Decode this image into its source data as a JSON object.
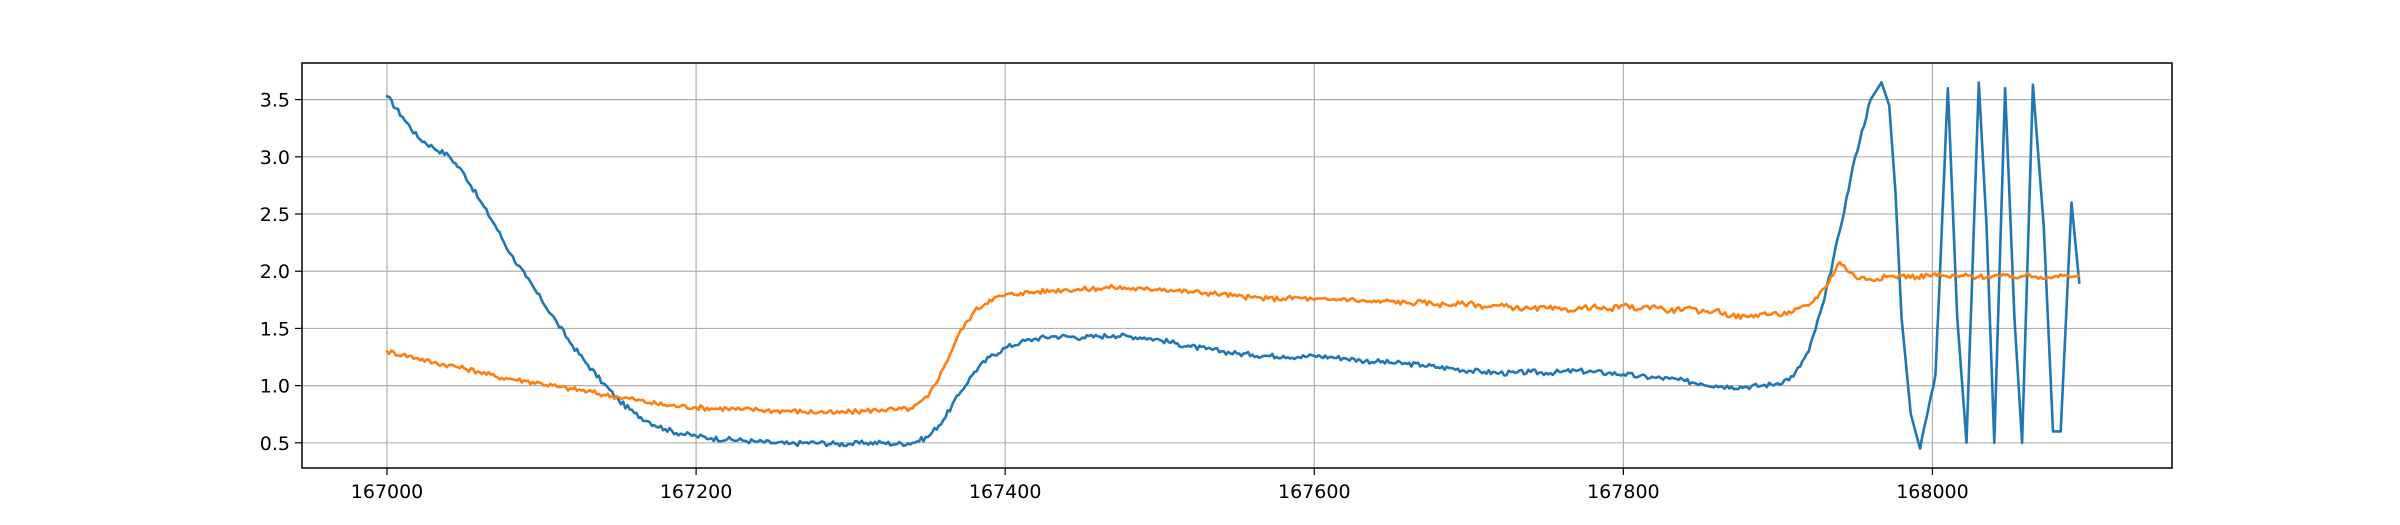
{
  "chart_data": {
    "type": "line",
    "title": "",
    "xlabel": "",
    "ylabel": "",
    "xlim": [
      166945,
      168155
    ],
    "ylim": [
      0.28,
      3.82
    ],
    "xticks": [
      167000,
      167200,
      167400,
      167600,
      167800,
      168000
    ],
    "yticks": [
      0.5,
      1.0,
      1.5,
      2.0,
      2.5,
      3.0,
      3.5
    ],
    "xtick_labels": [
      "167000",
      "167200",
      "167400",
      "167600",
      "167800",
      "168000"
    ],
    "ytick_labels": [
      "0.5",
      "1.0",
      "1.5",
      "2.0",
      "2.5",
      "3.0",
      "3.5"
    ],
    "grid": true,
    "legend": "none",
    "series": [
      {
        "color": "#1f77b4",
        "x": [
          167000,
          167010,
          167020,
          167030,
          167040,
          167050,
          167060,
          167070,
          167080,
          167090,
          167100,
          167110,
          167120,
          167130,
          167140,
          167150,
          167160,
          167170,
          167180,
          167190,
          167200,
          167210,
          167220,
          167230,
          167240,
          167250,
          167260,
          167270,
          167280,
          167290,
          167300,
          167310,
          167320,
          167330,
          167340,
          167350,
          167360,
          167370,
          167380,
          167390,
          167400,
          167410,
          167420,
          167430,
          167440,
          167450,
          167460,
          167470,
          167480,
          167490,
          167500,
          167510,
          167520,
          167530,
          167540,
          167550,
          167560,
          167570,
          167580,
          167590,
          167600,
          167610,
          167620,
          167630,
          167640,
          167650,
          167660,
          167670,
          167680,
          167690,
          167700,
          167710,
          167720,
          167730,
          167740,
          167750,
          167760,
          167770,
          167780,
          167790,
          167800,
          167810,
          167820,
          167830,
          167840,
          167850,
          167860,
          167870,
          167880,
          167890,
          167900,
          167910,
          167920,
          167930,
          167940,
          167950,
          167960,
          167967,
          167972,
          167976,
          167980,
          167986,
          167992,
          168002,
          168010,
          168016,
          168022,
          168030,
          168035,
          168040,
          168047,
          168053,
          168058,
          168065,
          168072,
          168078,
          168083,
          168090,
          168095
        ],
        "y": [
          3.53,
          3.35,
          3.17,
          3.08,
          3.01,
          2.85,
          2.62,
          2.4,
          2.15,
          1.95,
          1.75,
          1.55,
          1.35,
          1.18,
          1.02,
          0.87,
          0.76,
          0.68,
          0.62,
          0.58,
          0.56,
          0.54,
          0.53,
          0.52,
          0.51,
          0.5,
          0.49,
          0.5,
          0.5,
          0.49,
          0.49,
          0.5,
          0.5,
          0.49,
          0.5,
          0.55,
          0.7,
          0.92,
          1.12,
          1.25,
          1.33,
          1.38,
          1.41,
          1.43,
          1.43,
          1.42,
          1.43,
          1.44,
          1.43,
          1.42,
          1.4,
          1.37,
          1.34,
          1.32,
          1.3,
          1.28,
          1.27,
          1.26,
          1.26,
          1.25,
          1.26,
          1.25,
          1.24,
          1.22,
          1.21,
          1.2,
          1.19,
          1.18,
          1.16,
          1.15,
          1.13,
          1.12,
          1.11,
          1.11,
          1.12,
          1.11,
          1.12,
          1.13,
          1.12,
          1.11,
          1.1,
          1.08,
          1.07,
          1.06,
          1.04,
          1.02,
          1.0,
          0.99,
          0.99,
          1.0,
          1.02,
          1.08,
          1.3,
          1.75,
          2.35,
          3.0,
          3.5,
          3.65,
          3.45,
          2.7,
          1.6,
          0.75,
          0.45,
          1.1,
          3.6,
          1.6,
          0.5,
          3.65,
          2.4,
          0.5,
          3.6,
          1.6,
          0.5,
          3.63,
          2.4,
          0.6,
          0.6,
          2.6,
          1.9
        ]
      },
      {
        "color": "#ff7f0e",
        "x": [
          167000,
          167010,
          167020,
          167030,
          167040,
          167050,
          167060,
          167070,
          167080,
          167090,
          167100,
          167110,
          167120,
          167130,
          167140,
          167150,
          167160,
          167170,
          167180,
          167190,
          167200,
          167210,
          167220,
          167230,
          167240,
          167250,
          167260,
          167270,
          167280,
          167290,
          167300,
          167310,
          167320,
          167330,
          167340,
          167350,
          167360,
          167370,
          167380,
          167390,
          167400,
          167410,
          167420,
          167430,
          167440,
          167450,
          167460,
          167470,
          167480,
          167490,
          167500,
          167510,
          167520,
          167530,
          167540,
          167550,
          167560,
          167570,
          167580,
          167590,
          167600,
          167610,
          167620,
          167630,
          167640,
          167650,
          167660,
          167670,
          167680,
          167690,
          167700,
          167710,
          167720,
          167730,
          167740,
          167750,
          167760,
          167770,
          167780,
          167790,
          167800,
          167810,
          167820,
          167830,
          167840,
          167850,
          167860,
          167870,
          167880,
          167890,
          167900,
          167910,
          167920,
          167930,
          167940,
          167950,
          167960,
          167970,
          167980,
          167990,
          168000,
          168010,
          168020,
          168030,
          168040,
          168050,
          168060,
          168070,
          168080,
          168090,
          168095
        ],
        "y": [
          1.3,
          1.27,
          1.24,
          1.2,
          1.18,
          1.15,
          1.12,
          1.08,
          1.06,
          1.04,
          1.02,
          0.99,
          0.97,
          0.95,
          0.92,
          0.9,
          0.88,
          0.85,
          0.83,
          0.82,
          0.81,
          0.8,
          0.8,
          0.79,
          0.79,
          0.78,
          0.78,
          0.77,
          0.77,
          0.76,
          0.77,
          0.78,
          0.79,
          0.79,
          0.8,
          0.9,
          1.15,
          1.45,
          1.65,
          1.75,
          1.79,
          1.81,
          1.82,
          1.83,
          1.84,
          1.84,
          1.85,
          1.86,
          1.85,
          1.84,
          1.85,
          1.83,
          1.82,
          1.81,
          1.8,
          1.78,
          1.77,
          1.76,
          1.76,
          1.77,
          1.75,
          1.75,
          1.76,
          1.74,
          1.73,
          1.74,
          1.72,
          1.73,
          1.71,
          1.71,
          1.72,
          1.69,
          1.7,
          1.68,
          1.67,
          1.68,
          1.66,
          1.67,
          1.69,
          1.66,
          1.7,
          1.67,
          1.7,
          1.65,
          1.68,
          1.64,
          1.66,
          1.61,
          1.6,
          1.63,
          1.62,
          1.65,
          1.7,
          1.85,
          2.08,
          1.95,
          1.93,
          1.95,
          1.96,
          1.95,
          1.97,
          1.95,
          1.96,
          1.95,
          1.96,
          1.95,
          1.96,
          1.95,
          1.96,
          1.95,
          1.96
        ]
      }
    ]
  }
}
